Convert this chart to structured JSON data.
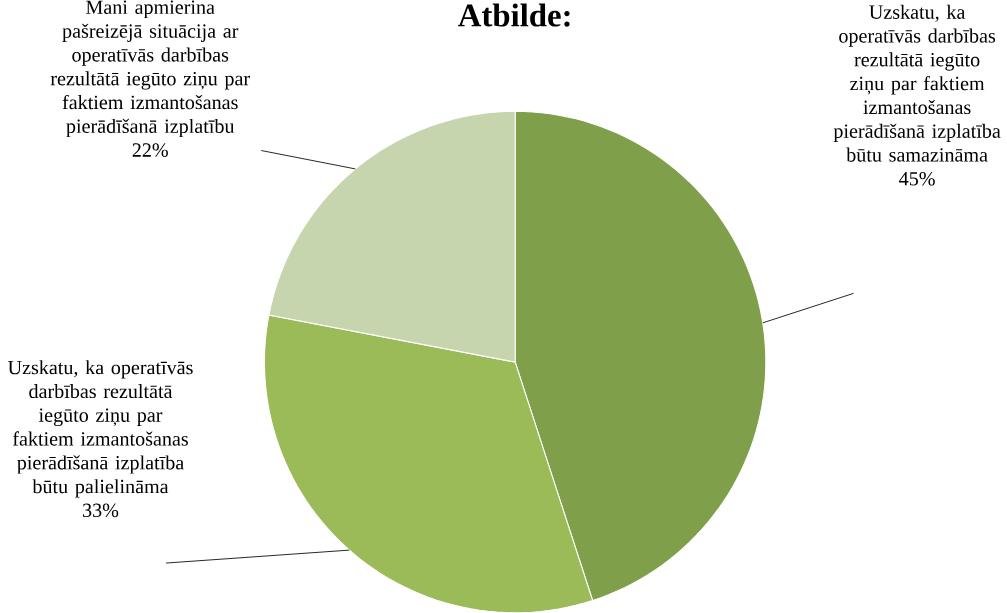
{
  "chart_data": {
    "type": "pie",
    "title": "Atbilde:",
    "categories": [
      "Uzskatu, ka operatīvās darbības rezultātā iegūto ziņu par faktiem izmantošanas pierādīšanā izplatība būtu samazināma",
      "Uzskatu, ka operatīvās darbības rezultātā iegūto ziņu par faktiem izmantošanas pierādīšanā izplatība būtu palielināma",
      "Mani apmierina pašreizējā situācija ar operatīvās darbības rezultātā iegūto ziņu par faktiem izmantošanas pierādīšanā izplatību"
    ],
    "values": [
      45,
      33,
      22
    ],
    "value_labels": [
      "45%",
      "33%",
      "22%"
    ],
    "colors": [
      "#7f9f4b",
      "#9bbb59",
      "#c6d5ad"
    ]
  }
}
